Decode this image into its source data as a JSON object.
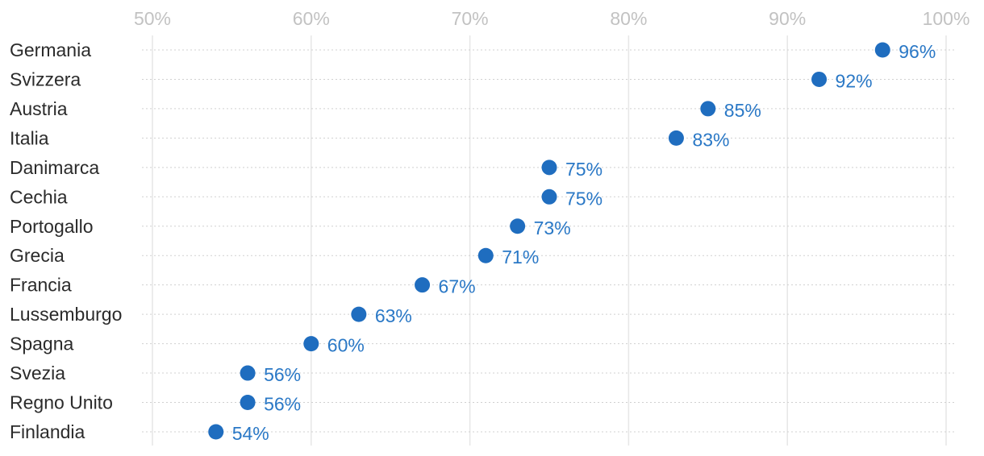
{
  "colors": {
    "dot": "#1f6dbf",
    "value_label": "#2a78c6",
    "grid": "#e6e6e6",
    "row_line": "#d0d0d0",
    "tick_label": "#c2c2c2",
    "category_label": "#2b2b2b"
  },
  "chart_data": {
    "type": "scatter",
    "title": "",
    "xlabel": "",
    "ylabel": "",
    "xlim": [
      50,
      100
    ],
    "x_ticks": [
      50,
      60,
      70,
      80,
      90,
      100
    ],
    "x_tick_labels": [
      "50%",
      "60%",
      "70%",
      "80%",
      "90%",
      "100%"
    ],
    "x_axis_position": "top",
    "grid": true,
    "legend": "none",
    "categories": [
      "Germania",
      "Svizzera",
      "Austria",
      "Italia",
      "Danimarca",
      "Cechia",
      "Portogallo",
      "Grecia",
      "Francia",
      "Lussemburgo",
      "Spagna",
      "Svezia",
      "Regno Unito",
      "Finlandia"
    ],
    "values": [
      96,
      92,
      85,
      83,
      75,
      75,
      73,
      71,
      67,
      63,
      60,
      56,
      56,
      54
    ],
    "value_labels": [
      "96%",
      "92%",
      "85%",
      "83%",
      "75%",
      "75%",
      "73%",
      "71%",
      "67%",
      "63%",
      "60%",
      "56%",
      "56%",
      "54%"
    ]
  }
}
